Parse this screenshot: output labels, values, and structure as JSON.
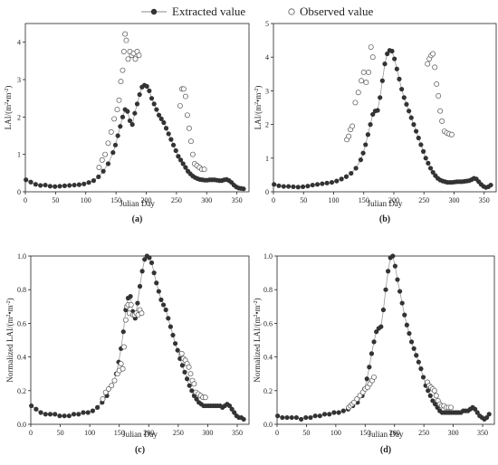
{
  "legend": {
    "extracted_label": "Extracted value",
    "observed_label": "Observed value"
  },
  "colors": {
    "extracted": "#333333",
    "observed": "#555555",
    "axis": "#222222"
  },
  "chart_data": [
    {
      "type": "line",
      "panel_label": "(a)",
      "xlabel": "Julian Day",
      "ylabel_main": "LAI/(m",
      "ylabel_sup1": "2",
      "ylabel_mid": "•m",
      "ylabel_sup2": "-2",
      "ylabel_end": ")",
      "xlim": [
        0,
        370
      ],
      "ylim": [
        0,
        4.5
      ],
      "xticks": [
        0,
        50,
        100,
        150,
        200,
        250,
        300,
        350
      ],
      "yticks": [
        0,
        1,
        2,
        3,
        4
      ],
      "yticklabels": [
        "0",
        "1",
        "2",
        "3",
        "4"
      ],
      "series": [
        {
          "name": "Extracted value",
          "x": [
            1,
            9,
            17,
            25,
            33,
            41,
            49,
            57,
            65,
            73,
            81,
            89,
            97,
            105,
            113,
            121,
            129,
            137,
            145,
            149,
            153,
            157,
            161,
            165,
            169,
            173,
            177,
            181,
            185,
            189,
            193,
            197,
            201,
            205,
            209,
            213,
            217,
            221,
            225,
            229,
            233,
            237,
            241,
            245,
            249,
            253,
            257,
            261,
            265,
            269,
            273,
            277,
            281,
            285,
            289,
            293,
            297,
            301,
            305,
            309,
            313,
            317,
            321,
            325,
            329,
            333,
            337,
            341,
            345,
            349,
            353,
            357,
            361
          ],
          "y": [
            0.32,
            0.26,
            0.2,
            0.17,
            0.18,
            0.15,
            0.14,
            0.15,
            0.16,
            0.17,
            0.18,
            0.19,
            0.21,
            0.25,
            0.3,
            0.4,
            0.55,
            0.75,
            1.05,
            1.25,
            1.5,
            1.75,
            2.0,
            2.2,
            2.15,
            1.9,
            1.8,
            2.1,
            2.35,
            2.6,
            2.8,
            2.85,
            2.82,
            2.7,
            2.5,
            2.35,
            2.2,
            2.05,
            1.95,
            1.85,
            1.7,
            1.55,
            1.4,
            1.25,
            1.1,
            0.95,
            0.85,
            0.75,
            0.65,
            0.55,
            0.48,
            0.42,
            0.38,
            0.35,
            0.33,
            0.32,
            0.31,
            0.31,
            0.32,
            0.32,
            0.32,
            0.31,
            0.3,
            0.3,
            0.32,
            0.33,
            0.3,
            0.25,
            0.18,
            0.13,
            0.1,
            0.09,
            0.08
          ]
        },
        {
          "name": "Observed value",
          "x": [
            122,
            127,
            132,
            137,
            142,
            147,
            152,
            155,
            158,
            161,
            163,
            165,
            167,
            170,
            173,
            176,
            179,
            182,
            185,
            188,
            256,
            259,
            262,
            265,
            268,
            271,
            274,
            277,
            280,
            284,
            288,
            292,
            296
          ],
          "y": [
            0.65,
            0.85,
            1.0,
            1.3,
            1.6,
            1.95,
            2.2,
            2.45,
            2.95,
            3.25,
            3.75,
            4.22,
            4.05,
            3.55,
            3.75,
            3.65,
            3.7,
            3.55,
            3.75,
            3.65,
            2.3,
            2.75,
            2.75,
            2.55,
            2.05,
            1.7,
            1.35,
            1.0,
            0.75,
            0.7,
            0.65,
            0.6,
            0.6
          ]
        }
      ]
    },
    {
      "type": "line",
      "panel_label": "(b)",
      "xlabel": "Julian Day",
      "ylabel_main": "LAI/(m",
      "ylabel_sup1": "2",
      "ylabel_mid": "•m",
      "ylabel_sup2": "-2",
      "ylabel_end": ")",
      "xlim": [
        0,
        370
      ],
      "ylim": [
        0,
        5
      ],
      "xticks": [
        0,
        50,
        100,
        150,
        200,
        250,
        300,
        350
      ],
      "yticks": [
        0,
        1,
        2,
        3,
        4,
        5
      ],
      "yticklabels": [
        "0",
        "1",
        "2",
        "3",
        "4",
        "5"
      ],
      "series": [
        {
          "name": "Extracted value",
          "x": [
            1,
            9,
            17,
            25,
            33,
            41,
            49,
            57,
            65,
            73,
            81,
            89,
            97,
            105,
            113,
            121,
            129,
            137,
            145,
            149,
            153,
            157,
            161,
            165,
            169,
            173,
            177,
            181,
            185,
            189,
            193,
            197,
            201,
            205,
            209,
            213,
            217,
            221,
            225,
            229,
            233,
            237,
            241,
            245,
            249,
            253,
            257,
            261,
            265,
            269,
            273,
            277,
            281,
            285,
            289,
            293,
            297,
            301,
            305,
            309,
            313,
            317,
            321,
            325,
            329,
            333,
            337,
            341,
            345,
            349,
            353,
            357,
            361
          ],
          "y": [
            0.22,
            0.18,
            0.16,
            0.16,
            0.15,
            0.14,
            0.15,
            0.17,
            0.2,
            0.22,
            0.24,
            0.26,
            0.28,
            0.32,
            0.38,
            0.45,
            0.55,
            0.7,
            0.95,
            1.15,
            1.4,
            1.7,
            2.0,
            2.3,
            2.4,
            2.42,
            2.8,
            3.3,
            3.8,
            4.1,
            4.2,
            4.18,
            3.95,
            3.65,
            3.35,
            3.05,
            2.8,
            2.6,
            2.4,
            2.2,
            2.0,
            1.8,
            1.6,
            1.4,
            1.2,
            1.0,
            0.85,
            0.7,
            0.58,
            0.48,
            0.4,
            0.35,
            0.32,
            0.3,
            0.28,
            0.28,
            0.28,
            0.29,
            0.3,
            0.3,
            0.3,
            0.31,
            0.32,
            0.33,
            0.36,
            0.4,
            0.38,
            0.3,
            0.22,
            0.16,
            0.13,
            0.15,
            0.2
          ]
        },
        {
          "name": "Observed value",
          "x": [
            122,
            125,
            128,
            131,
            136,
            141,
            146,
            150,
            154,
            158,
            162,
            165,
            256,
            259,
            262,
            265,
            268,
            271,
            274,
            277,
            280,
            284,
            288,
            292,
            296
          ],
          "y": [
            1.55,
            1.65,
            1.85,
            1.95,
            2.65,
            2.95,
            3.3,
            3.55,
            3.25,
            3.55,
            4.3,
            4.0,
            3.8,
            3.95,
            4.05,
            4.1,
            3.7,
            3.2,
            2.85,
            2.4,
            2.1,
            1.8,
            1.75,
            1.72,
            1.7
          ]
        }
      ]
    },
    {
      "type": "line",
      "panel_label": "(c)",
      "xlabel": "Julian Day",
      "ylabel_main": "Normalized LAI/(m",
      "ylabel_sup1": "2",
      "ylabel_mid": "•m",
      "ylabel_sup2": "-2",
      "ylabel_end": ")",
      "xlim": [
        0,
        370
      ],
      "ylim": [
        0,
        1.0
      ],
      "xticks": [
        0,
        50,
        100,
        150,
        200,
        250,
        300,
        350
      ],
      "yticks": [
        0,
        0.2,
        0.4,
        0.6,
        0.8,
        1.0
      ],
      "yticklabels": [
        "0.0",
        "0.2",
        "0.4",
        "0.6",
        "0.8",
        "1.0"
      ],
      "series": [
        {
          "name": "Extracted value",
          "x": [
            1,
            9,
            17,
            25,
            33,
            41,
            49,
            57,
            65,
            73,
            81,
            89,
            97,
            105,
            113,
            121,
            129,
            137,
            145,
            149,
            153,
            157,
            161,
            165,
            169,
            173,
            177,
            181,
            185,
            189,
            193,
            197,
            201,
            205,
            209,
            213,
            217,
            221,
            225,
            229,
            233,
            237,
            241,
            245,
            249,
            253,
            257,
            261,
            265,
            269,
            273,
            277,
            281,
            285,
            289,
            293,
            297,
            301,
            305,
            309,
            313,
            317,
            321,
            325,
            329,
            333,
            337,
            341,
            345,
            349,
            353,
            357,
            361
          ],
          "y": [
            0.11,
            0.09,
            0.07,
            0.06,
            0.06,
            0.06,
            0.05,
            0.05,
            0.05,
            0.06,
            0.06,
            0.07,
            0.07,
            0.08,
            0.1,
            0.13,
            0.17,
            0.23,
            0.3,
            0.37,
            0.45,
            0.55,
            0.68,
            0.75,
            0.76,
            0.67,
            0.63,
            0.72,
            0.82,
            0.91,
            0.98,
            1.0,
            0.99,
            0.96,
            0.9,
            0.84,
            0.79,
            0.74,
            0.71,
            0.68,
            0.63,
            0.58,
            0.53,
            0.48,
            0.44,
            0.39,
            0.35,
            0.31,
            0.27,
            0.23,
            0.2,
            0.17,
            0.15,
            0.13,
            0.12,
            0.11,
            0.11,
            0.11,
            0.11,
            0.11,
            0.11,
            0.11,
            0.11,
            0.1,
            0.11,
            0.12,
            0.11,
            0.09,
            0.07,
            0.05,
            0.04,
            0.04,
            0.03
          ]
        },
        {
          "name": "Observed value",
          "x": [
            122,
            127,
            132,
            137,
            142,
            147,
            150,
            153,
            156,
            158,
            161,
            163,
            165,
            167,
            170,
            173,
            176,
            179,
            182,
            185,
            188,
            256,
            259,
            262,
            265,
            268,
            271,
            274,
            277,
            280,
            284,
            288,
            292,
            296
          ],
          "y": [
            0.15,
            0.19,
            0.21,
            0.23,
            0.26,
            0.3,
            0.32,
            0.36,
            0.33,
            0.46,
            0.62,
            0.7,
            0.71,
            0.66,
            0.71,
            0.65,
            0.65,
            0.66,
            0.65,
            0.68,
            0.66,
            0.42,
            0.39,
            0.38,
            0.36,
            0.34,
            0.3,
            0.26,
            0.24,
            0.19,
            0.18,
            0.17,
            0.16,
            0.16
          ]
        }
      ]
    },
    {
      "type": "line",
      "panel_label": "(d)",
      "xlabel": "Julian Day",
      "ylabel_main": "Normalized LAI/(m",
      "ylabel_sup1": "2",
      "ylabel_mid": "•m",
      "ylabel_sup2": "-2",
      "ylabel_end": ")",
      "xlim": [
        0,
        370
      ],
      "ylim": [
        0,
        1.0
      ],
      "xticks": [
        0,
        50,
        100,
        150,
        200,
        250,
        300,
        350
      ],
      "yticks": [
        0,
        0.2,
        0.4,
        0.6,
        0.8,
        1.0
      ],
      "yticklabels": [
        "0.0",
        "0.2",
        "0.4",
        "0.6",
        "0.8",
        "1.0"
      ],
      "series": [
        {
          "name": "Extracted value",
          "x": [
            1,
            9,
            17,
            25,
            33,
            41,
            49,
            57,
            65,
            73,
            81,
            89,
            97,
            105,
            113,
            121,
            129,
            137,
            145,
            149,
            153,
            157,
            161,
            165,
            169,
            173,
            177,
            181,
            185,
            189,
            193,
            197,
            201,
            205,
            209,
            213,
            217,
            221,
            225,
            229,
            233,
            237,
            241,
            245,
            249,
            253,
            257,
            261,
            265,
            269,
            273,
            277,
            281,
            285,
            289,
            293,
            297,
            301,
            305,
            309,
            313,
            317,
            321,
            325,
            329,
            333,
            337,
            341,
            345,
            349,
            353,
            357,
            361
          ],
          "y": [
            0.05,
            0.04,
            0.04,
            0.04,
            0.04,
            0.03,
            0.04,
            0.04,
            0.05,
            0.05,
            0.06,
            0.06,
            0.07,
            0.07,
            0.08,
            0.09,
            0.11,
            0.13,
            0.17,
            0.21,
            0.27,
            0.34,
            0.42,
            0.49,
            0.55,
            0.57,
            0.58,
            0.68,
            0.8,
            0.91,
            0.99,
            1.0,
            0.94,
            0.86,
            0.79,
            0.72,
            0.65,
            0.59,
            0.54,
            0.49,
            0.45,
            0.41,
            0.37,
            0.33,
            0.28,
            0.23,
            0.2,
            0.17,
            0.14,
            0.12,
            0.1,
            0.08,
            0.07,
            0.07,
            0.07,
            0.07,
            0.07,
            0.07,
            0.07,
            0.07,
            0.07,
            0.08,
            0.08,
            0.08,
            0.09,
            0.1,
            0.09,
            0.07,
            0.05,
            0.04,
            0.03,
            0.04,
            0.06
          ]
        },
        {
          "name": "Observed value",
          "x": [
            122,
            125,
            128,
            131,
            136,
            141,
            146,
            150,
            154,
            158,
            162,
            165,
            256,
            259,
            262,
            265,
            268,
            271,
            274,
            277,
            280,
            284,
            288,
            292,
            296
          ],
          "y": [
            0.1,
            0.11,
            0.12,
            0.13,
            0.15,
            0.17,
            0.19,
            0.21,
            0.22,
            0.24,
            0.26,
            0.28,
            0.25,
            0.23,
            0.22,
            0.21,
            0.2,
            0.17,
            0.14,
            0.12,
            0.11,
            0.11,
            0.1,
            0.1,
            0.1
          ]
        }
      ]
    }
  ]
}
